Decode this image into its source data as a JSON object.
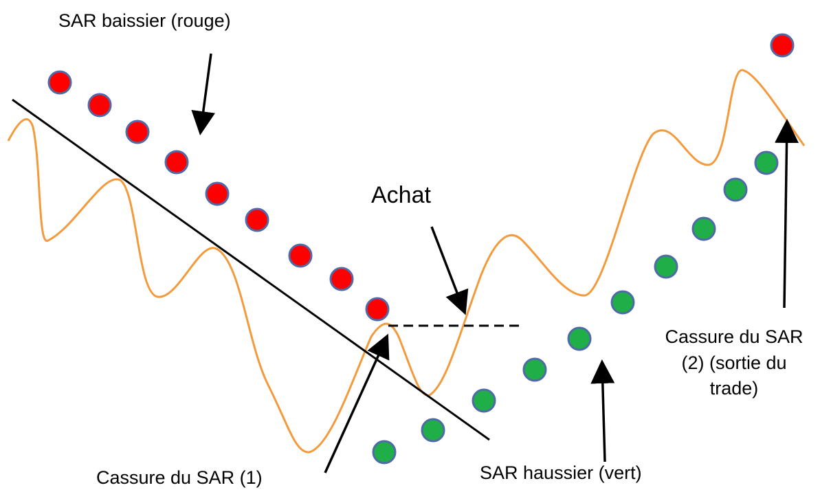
{
  "labels": {
    "bearish": "SAR baissier (rouge)",
    "buy": "Achat",
    "break1": "Cassure du SAR (1)",
    "bullish": "SAR haussier (vert)",
    "break2": [
      "Cassure du SAR",
      "(2) (sortie du",
      "trade)"
    ]
  }
}
